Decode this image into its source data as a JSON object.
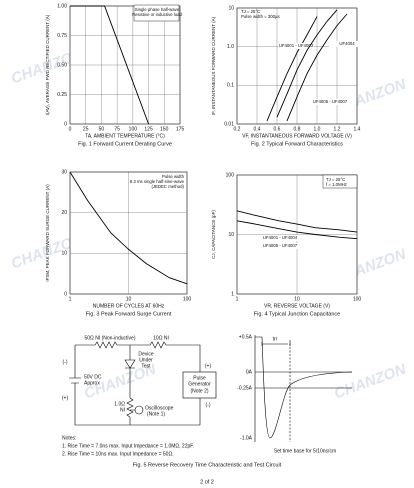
{
  "chart_data": [
    {
      "type": "line",
      "caption": "Fig. 1 Forward Current Derating Curve",
      "x_label": "TA, AMBIENT TEMPERATURE (°C)",
      "y_label": "I(AV), AVERAGE FWD RECTIFIED CURRENT (A)",
      "annotation": [
        "Single phase half-wave",
        "Resistive or inductive load"
      ],
      "x": [
        0,
        55,
        125
      ],
      "series": [
        {
          "values": [
            1.0,
            1.0,
            0
          ],
          "color": "#000000"
        }
      ],
      "xlim": [
        0,
        175
      ],
      "xticks": [
        0,
        25,
        50,
        75,
        100,
        125,
        150,
        175
      ],
      "ylim": [
        0,
        1.0
      ],
      "yticks": [
        0,
        0.25,
        {
          "value": 0.5,
          "label": "0.50"
        },
        0.75,
        {
          "value": 1.0,
          "label": "1.00"
        }
      ],
      "grid": true
    },
    {
      "type": "line",
      "caption": "Fig. 2 Typical Forward Characteristics",
      "x_label": "VF, INSTANTANEOUS FORWARD VOLTAGE (V)",
      "y_label": "IF, INSTANTANEOUS FORWARD CURRENT (A)",
      "annotation": [
        "TJ = 25°C",
        "Pulse width = 300µs"
      ],
      "x": [
        0.4,
        0.5,
        0.6,
        0.7,
        0.8,
        0.9,
        1.0,
        1.1,
        1.2,
        1.3,
        1.4
      ],
      "series": [
        {
          "name": "UF4001 - UF4003",
          "color": "#000000",
          "values": [
            null,
            0.012,
            0.05,
            0.2,
            0.7,
            2,
            6,
            null,
            null,
            null,
            null
          ]
        },
        {
          "name": "UF4004",
          "color": "#000000",
          "values": [
            null,
            null,
            0.015,
            0.06,
            0.25,
            0.8,
            2,
            4.5,
            9,
            null,
            null
          ]
        },
        {
          "name": "UF4005 - UF4007",
          "color": "#000000",
          "values": [
            null,
            null,
            null,
            0.012,
            0.05,
            0.2,
            0.6,
            1.5,
            3.5,
            7,
            null
          ]
        }
      ],
      "xlim": [
        0.2,
        1.4
      ],
      "xticks": [
        0.2,
        0.4,
        0.6,
        0.8,
        {
          "value": 1.0,
          "label": "1.0"
        },
        1.2,
        1.4
      ],
      "ylim": [
        0.01,
        10
      ],
      "yticks": [
        0.01,
        0.1,
        {
          "value": 1,
          "label": "1.0"
        },
        10
      ],
      "yscale": "log",
      "grid": true
    },
    {
      "type": "line",
      "caption": "Fig. 3 Peak Forward Surge Current",
      "x_label": "NUMBER OF CYCLES AT 60Hz",
      "y_label": "IFSM, PEAK FORWARD SURGE CURRENT (A)",
      "annotation": [
        "Pulse width",
        "8.3 ms single half-sine-wave",
        "(JEDEC method)"
      ],
      "x": [
        1,
        2,
        5,
        10,
        20,
        50,
        100
      ],
      "series": [
        {
          "values": [
            30,
            23,
            15,
            11,
            7.5,
            4,
            2.5
          ],
          "color": "#000000"
        }
      ],
      "xlim": [
        1,
        100
      ],
      "xticks": [
        1,
        10,
        100
      ],
      "xscale": "log",
      "ylim": [
        0,
        30
      ],
      "yticks": [
        0,
        10,
        20,
        30
      ],
      "grid": true
    },
    {
      "type": "line",
      "caption": "Fig. 4 Typical Junction Capacitance",
      "x_label": "VR, REVERSE VOLTAGE (V)",
      "y_label": "CJ, CAPACITANCE (pF)",
      "annotation": [
        "TJ = 25°C",
        "f = 1.0MHz"
      ],
      "x": [
        1,
        2,
        5,
        10,
        20,
        50,
        100
      ],
      "series": [
        {
          "name": "UF4001 - UF4004",
          "color": "#000000",
          "values": [
            25,
            21,
            17,
            15,
            13,
            12,
            11
          ]
        },
        {
          "name": "UF4005 - UF4007",
          "color": "#000000",
          "values": [
            17,
            15,
            12.5,
            11,
            10,
            9,
            8.5
          ]
        }
      ],
      "xlim": [
        1,
        100
      ],
      "xticks": [
        1,
        10,
        100
      ],
      "xscale": "log",
      "ylim": [
        1,
        100
      ],
      "yticks": [
        1,
        10,
        100
      ],
      "yscale": "log",
      "grid": true
    }
  ],
  "figure5": {
    "circuit": {
      "r1": "50Ω NI (Non-inductive)",
      "r2": "10Ω NI",
      "dut": [
        "Device",
        "Under",
        "Test"
      ],
      "source": [
        "50V DC",
        "Approx"
      ],
      "pulse_generator": [
        "Pulse",
        "Generator",
        "(Note 2)"
      ],
      "r3": [
        "1.0Ω",
        "NI"
      ],
      "oscilloscope": [
        "Oscilloscope",
        "(Note 1)"
      ],
      "polarity": [
        "(-)",
        "(+)",
        "(+)",
        "(-)"
      ]
    },
    "waveform": {
      "levels": [
        "+0.5A",
        "0A",
        "-0.25A",
        "-1.0A"
      ],
      "trr": "trr",
      "time_base": "Set time base for 5/10ns/cm"
    },
    "caption": "Fig. 5 Reverse Recovery Time Characteristic and Test Circuit"
  },
  "notes": [
    "Notes:",
    "1. Rise Time = 7.0ns max. Input Impedance = 1.0MΩ, 22pF.",
    "2. Rise Time = 10ns max. Input Impedance = 50Ω."
  ],
  "page_number": "2 of 2",
  "watermark": "CHANZON"
}
